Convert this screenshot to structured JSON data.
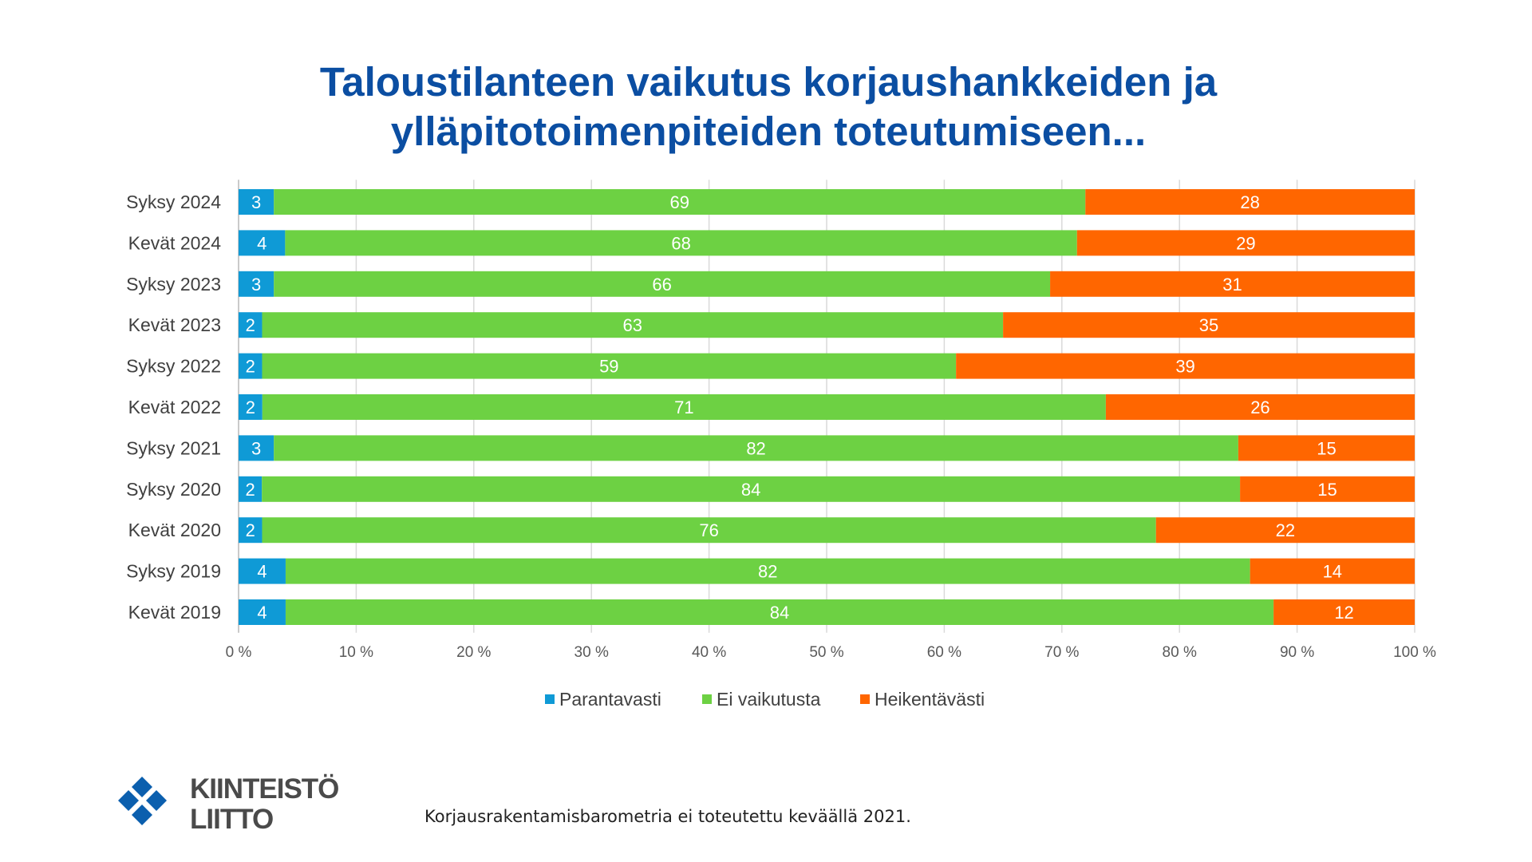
{
  "chart_data": {
    "type": "bar",
    "orientation": "horizontal",
    "stacked": "percent",
    "title_lines": [
      "Taloustilanteen vaikutus korjaushankkeiden ja",
      "ylläpitotoimenpiteiden toteutumiseen..."
    ],
    "categories": [
      "Syksy 2024",
      "Kevät 2024",
      "Syksy 2023",
      "Kevät 2023",
      "Syksy 2022",
      "Kevät 2022",
      "Syksy 2021",
      "Syksy 2020",
      "Kevät 2020",
      "Syksy 2019",
      "Kevät 2019"
    ],
    "series": [
      {
        "name": "Parantavasti",
        "color": "#0F9AD6",
        "values": [
          3,
          4,
          3,
          2,
          2,
          2,
          3,
          2,
          2,
          4,
          4
        ]
      },
      {
        "name": "Ei vaikutusta",
        "color": "#6DD143",
        "values": [
          69,
          68,
          66,
          63,
          59,
          71,
          82,
          84,
          76,
          82,
          84
        ]
      },
      {
        "name": "Heikentävästi",
        "color": "#FF6600",
        "values": [
          28,
          29,
          31,
          35,
          39,
          26,
          15,
          15,
          22,
          14,
          12
        ]
      }
    ],
    "xticks": [
      "0 %",
      "10 %",
      "20 %",
      "30 %",
      "40 %",
      "50 %",
      "60 %",
      "70 %",
      "80 %",
      "90 %",
      "100 %"
    ],
    "xlim": [
      0,
      100
    ],
    "grid": "vertical",
    "legend": "bottom"
  },
  "logo": {
    "line1": "KIINTEISTÖ",
    "line2": "LIITTO",
    "color": "#0B5FAE"
  },
  "footnote": "Korjausrakentamisbarometria ei toteutettu keväällä 2021."
}
